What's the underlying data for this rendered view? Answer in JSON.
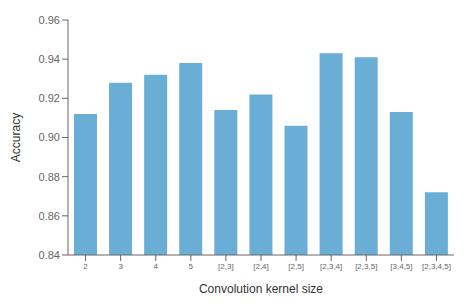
{
  "chart_data": {
    "type": "bar",
    "categories": [
      "2",
      "3",
      "4",
      "5",
      "[2,3]",
      "[2,4]",
      "[2,5]",
      "[2,3,4]",
      "[2,3,5]",
      "[3,4,5]",
      "[2,3,4,5]"
    ],
    "values": [
      0.912,
      0.928,
      0.932,
      0.938,
      0.914,
      0.922,
      0.906,
      0.943,
      0.941,
      0.913,
      0.872
    ],
    "color": "#6aaed6",
    "xlabel": "Convolution kernel size",
    "ylabel": "Accuracy",
    "ylim": [
      0.84,
      0.96
    ],
    "yticks": [
      0.84,
      0.86,
      0.88,
      {
        "value": 0.9,
        "label": "0.90"
      },
      0.92,
      0.94,
      0.96
    ],
    "grid": false
  }
}
